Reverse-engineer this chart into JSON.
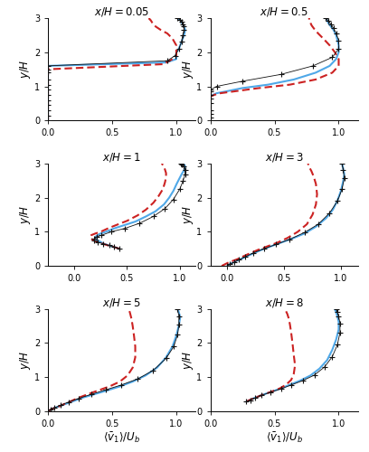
{
  "panels": [
    {
      "title": "0.05",
      "xlim": [
        0.0,
        1.15
      ],
      "xticks": [
        0,
        0.5,
        1
      ]
    },
    {
      "title": "0.5",
      "xlim": [
        0.0,
        1.15
      ],
      "xticks": [
        0,
        0.5,
        1
      ]
    },
    {
      "title": "1",
      "xlim": [
        -0.25,
        1.15
      ],
      "xticks": [
        0,
        0.5,
        1
      ]
    },
    {
      "title": "3",
      "xlim": [
        -0.15,
        1.15
      ],
      "xticks": [
        0,
        0.5,
        1
      ]
    },
    {
      "title": "5",
      "xlim": [
        0.0,
        1.15
      ],
      "xticks": [
        0,
        0.5,
        1
      ]
    },
    {
      "title": "8",
      "xlim": [
        0.0,
        1.15
      ],
      "xticks": [
        0,
        0.5,
        1
      ]
    }
  ],
  "ylim": [
    0,
    3
  ],
  "yticks": [
    0,
    1,
    2,
    3
  ],
  "new_pans_color": "#4fa8e8",
  "old_pans_color": "#cc2222",
  "les_color": "#111111",
  "new_pans_lw": 1.5,
  "old_pans_lw": 1.5,
  "les_ms": 4.0,
  "panel_data": {
    "0.05": {
      "new_x": [
        0.0,
        0.0,
        0.0,
        0.0,
        0.0,
        0.0,
        0.0,
        0.0,
        0.0,
        0.0,
        0.0,
        0.0,
        0.0,
        0.0,
        0.0,
        0.0,
        0.0,
        0.0,
        0.0,
        0.0,
        0.0,
        0.0,
        0.0,
        0.0,
        0.0,
        0.0,
        0.0,
        0.0,
        0.0,
        0.0,
        0.92,
        1.0,
        1.0,
        1.0,
        1.02,
        1.04,
        1.06,
        1.07,
        1.06,
        1.05,
        1.04,
        1.03,
        1.01
      ],
      "new_y": [
        0.0,
        0.05,
        0.1,
        0.15,
        0.2,
        0.25,
        0.3,
        0.35,
        0.4,
        0.45,
        0.5,
        0.55,
        0.6,
        0.65,
        0.7,
        0.75,
        0.8,
        0.85,
        0.9,
        0.95,
        1.0,
        1.05,
        1.1,
        1.15,
        1.2,
        1.25,
        1.3,
        1.4,
        1.5,
        1.6,
        1.7,
        1.8,
        1.9,
        2.0,
        2.1,
        2.3,
        2.5,
        2.65,
        2.75,
        2.82,
        2.88,
        2.94,
        3.0
      ],
      "old_x": [
        0.0,
        0.0,
        0.0,
        0.0,
        0.0,
        0.0,
        0.0,
        0.0,
        0.0,
        0.0,
        0.0,
        0.0,
        0.0,
        0.0,
        0.0,
        0.0,
        0.0,
        0.0,
        0.0,
        0.0,
        0.0,
        0.0,
        0.0,
        0.0,
        0.0,
        0.0,
        0.0,
        0.0,
        0.0,
        0.9,
        0.97,
        1.0,
        1.0,
        1.0,
        0.97,
        0.93,
        0.88,
        0.84,
        0.82,
        0.81,
        0.8,
        0.79,
        0.79
      ],
      "old_y": [
        0.0,
        0.05,
        0.1,
        0.15,
        0.2,
        0.25,
        0.3,
        0.35,
        0.4,
        0.45,
        0.5,
        0.55,
        0.6,
        0.65,
        0.7,
        0.75,
        0.8,
        0.85,
        0.9,
        0.95,
        1.0,
        1.05,
        1.1,
        1.15,
        1.2,
        1.25,
        1.3,
        1.4,
        1.5,
        1.65,
        1.8,
        1.9,
        2.0,
        2.2,
        2.4,
        2.55,
        2.65,
        2.75,
        2.82,
        2.88,
        2.94,
        2.97,
        3.0
      ],
      "les_x": [
        0.0,
        0.0,
        0.0,
        0.0,
        0.0,
        0.0,
        0.0,
        0.0,
        0.0,
        0.0,
        0.0,
        0.0,
        0.93,
        0.99,
        1.02,
        1.04,
        1.05,
        1.06,
        1.06,
        1.05,
        1.04,
        1.03,
        1.01
      ],
      "les_y": [
        0.0,
        0.15,
        0.3,
        0.45,
        0.6,
        0.75,
        0.9,
        1.05,
        1.2,
        1.4,
        1.5,
        1.6,
        1.75,
        1.9,
        2.1,
        2.3,
        2.5,
        2.65,
        2.75,
        2.82,
        2.9,
        2.95,
        3.0
      ]
    },
    "0.5": {
      "new_x": [
        0.0,
        0.0,
        0.0,
        0.0,
        0.0,
        0.0,
        0.0,
        0.0,
        0.0,
        0.0,
        0.0,
        0.0,
        0.0,
        0.0,
        0.0,
        0.02,
        0.05,
        0.12,
        0.25,
        0.45,
        0.65,
        0.82,
        0.93,
        0.98,
        1.0,
        1.0,
        0.99,
        0.98,
        0.96,
        0.94,
        0.92,
        0.91,
        0.9
      ],
      "new_y": [
        0.0,
        0.05,
        0.1,
        0.15,
        0.2,
        0.25,
        0.3,
        0.35,
        0.4,
        0.45,
        0.5,
        0.55,
        0.6,
        0.65,
        0.7,
        0.75,
        0.8,
        0.85,
        0.95,
        1.05,
        1.2,
        1.4,
        1.6,
        1.8,
        2.0,
        2.2,
        2.35,
        2.5,
        2.65,
        2.75,
        2.85,
        2.93,
        3.0
      ],
      "old_x": [
        0.0,
        0.0,
        0.0,
        0.0,
        0.0,
        0.0,
        0.0,
        0.0,
        0.0,
        0.0,
        0.0,
        0.0,
        0.0,
        0.0,
        0.0,
        0.03,
        0.08,
        0.18,
        0.38,
        0.62,
        0.82,
        0.95,
        1.0,
        1.0,
        0.97,
        0.93,
        0.88,
        0.84,
        0.81,
        0.79,
        0.78,
        0.77,
        0.77
      ],
      "old_y": [
        0.0,
        0.05,
        0.1,
        0.15,
        0.2,
        0.25,
        0.3,
        0.35,
        0.4,
        0.45,
        0.5,
        0.55,
        0.6,
        0.65,
        0.7,
        0.75,
        0.8,
        0.85,
        0.95,
        1.05,
        1.2,
        1.4,
        1.6,
        1.8,
        2.0,
        2.2,
        2.4,
        2.55,
        2.68,
        2.78,
        2.86,
        2.93,
        3.0
      ],
      "les_x": [
        0.0,
        0.0,
        0.0,
        0.0,
        0.0,
        0.0,
        0.0,
        0.0,
        0.0,
        0.05,
        0.25,
        0.55,
        0.8,
        0.95,
        1.0,
        1.0,
        0.98,
        0.96,
        0.94,
        0.92,
        0.9
      ],
      "les_y": [
        0.0,
        0.1,
        0.2,
        0.3,
        0.5,
        0.65,
        0.75,
        0.85,
        0.9,
        1.0,
        1.15,
        1.35,
        1.6,
        1.85,
        2.1,
        2.35,
        2.55,
        2.7,
        2.82,
        2.92,
        3.0
      ]
    },
    "1": {
      "new_x": [
        0.43,
        0.38,
        0.33,
        0.28,
        0.25,
        0.22,
        0.2,
        0.2,
        0.22,
        0.25,
        0.3,
        0.38,
        0.48,
        0.58,
        0.68,
        0.77,
        0.85,
        0.9,
        0.94,
        0.97,
        1.0,
        1.02,
        1.04,
        1.05,
        1.05,
        1.04,
        1.03,
        1.01
      ],
      "new_y": [
        0.5,
        0.55,
        0.6,
        0.65,
        0.7,
        0.75,
        0.8,
        0.85,
        0.9,
        0.95,
        1.0,
        1.1,
        1.2,
        1.3,
        1.45,
        1.6,
        1.8,
        2.0,
        2.2,
        2.4,
        2.58,
        2.7,
        2.8,
        2.88,
        2.93,
        2.97,
        2.99,
        3.0
      ],
      "old_x": [
        0.43,
        0.38,
        0.32,
        0.27,
        0.22,
        0.18,
        0.16,
        0.15,
        0.16,
        0.2,
        0.25,
        0.32,
        0.4,
        0.5,
        0.6,
        0.68,
        0.75,
        0.8,
        0.84,
        0.86,
        0.87,
        0.87,
        0.86,
        0.85,
        0.84,
        0.83
      ],
      "old_y": [
        0.5,
        0.55,
        0.6,
        0.65,
        0.7,
        0.75,
        0.8,
        0.85,
        0.9,
        0.95,
        1.0,
        1.1,
        1.2,
        1.32,
        1.48,
        1.65,
        1.85,
        2.05,
        2.25,
        2.45,
        2.6,
        2.72,
        2.82,
        2.9,
        2.95,
        3.0
      ],
      "les_x": [
        0.43,
        0.38,
        0.33,
        0.27,
        0.22,
        0.19,
        0.19,
        0.21,
        0.26,
        0.35,
        0.48,
        0.62,
        0.75,
        0.86,
        0.94,
        1.0,
        1.03,
        1.05,
        1.05,
        1.04,
        1.02,
        1.01
      ],
      "les_y": [
        0.5,
        0.55,
        0.6,
        0.65,
        0.7,
        0.75,
        0.8,
        0.85,
        0.9,
        1.0,
        1.1,
        1.25,
        1.45,
        1.68,
        1.95,
        2.25,
        2.48,
        2.68,
        2.82,
        2.92,
        2.97,
        3.0
      ]
    },
    "3": {
      "new_x": [
        0.0,
        0.02,
        0.05,
        0.08,
        0.12,
        0.17,
        0.23,
        0.3,
        0.38,
        0.47,
        0.57,
        0.68,
        0.78,
        0.87,
        0.93,
        0.97,
        1.0,
        1.02,
        1.03,
        1.02,
        1.01
      ],
      "new_y": [
        0.0,
        0.05,
        0.1,
        0.15,
        0.2,
        0.28,
        0.37,
        0.47,
        0.57,
        0.68,
        0.8,
        0.95,
        1.15,
        1.4,
        1.65,
        1.92,
        2.2,
        2.48,
        2.68,
        2.85,
        3.0
      ],
      "old_x": [
        -0.05,
        -0.02,
        0.01,
        0.05,
        0.09,
        0.14,
        0.2,
        0.27,
        0.35,
        0.44,
        0.53,
        0.62,
        0.7,
        0.75,
        0.78,
        0.79,
        0.78,
        0.76,
        0.74,
        0.72,
        0.71
      ],
      "old_y": [
        0.0,
        0.05,
        0.1,
        0.15,
        0.2,
        0.28,
        0.37,
        0.47,
        0.57,
        0.68,
        0.82,
        1.0,
        1.22,
        1.5,
        1.8,
        2.1,
        2.4,
        2.62,
        2.78,
        2.9,
        3.0
      ],
      "les_x": [
        0.0,
        0.02,
        0.06,
        0.1,
        0.16,
        0.23,
        0.32,
        0.43,
        0.55,
        0.68,
        0.8,
        0.9,
        0.97,
        1.01,
        1.03,
        1.02,
        1.01
      ],
      "les_y": [
        0.0,
        0.05,
        0.1,
        0.18,
        0.27,
        0.38,
        0.5,
        0.63,
        0.78,
        0.98,
        1.22,
        1.55,
        1.9,
        2.25,
        2.58,
        2.82,
        3.0
      ]
    },
    "5": {
      "new_x": [
        0.0,
        0.02,
        0.05,
        0.09,
        0.14,
        0.2,
        0.27,
        0.36,
        0.46,
        0.56,
        0.66,
        0.76,
        0.85,
        0.92,
        0.97,
        1.0,
        1.02,
        1.03,
        1.02,
        1.01
      ],
      "new_y": [
        0.0,
        0.05,
        0.1,
        0.15,
        0.22,
        0.3,
        0.4,
        0.5,
        0.61,
        0.73,
        0.87,
        1.05,
        1.28,
        1.58,
        1.9,
        2.22,
        2.52,
        2.75,
        2.9,
        3.0
      ],
      "old_x": [
        0.0,
        0.02,
        0.05,
        0.09,
        0.13,
        0.18,
        0.24,
        0.31,
        0.39,
        0.48,
        0.56,
        0.62,
        0.66,
        0.68,
        0.68,
        0.67,
        0.66,
        0.65,
        0.64,
        0.63
      ],
      "old_y": [
        0.0,
        0.05,
        0.1,
        0.15,
        0.22,
        0.3,
        0.4,
        0.5,
        0.61,
        0.73,
        0.87,
        1.05,
        1.28,
        1.58,
        1.9,
        2.22,
        2.5,
        2.72,
        2.87,
        3.0
      ],
      "les_x": [
        0.0,
        0.02,
        0.05,
        0.1,
        0.16,
        0.24,
        0.34,
        0.45,
        0.57,
        0.7,
        0.82,
        0.92,
        0.98,
        1.01,
        1.02,
        1.02,
        1.01
      ],
      "les_y": [
        0.0,
        0.05,
        0.1,
        0.18,
        0.27,
        0.38,
        0.5,
        0.63,
        0.77,
        0.95,
        1.2,
        1.55,
        1.9,
        2.25,
        2.55,
        2.78,
        3.0
      ]
    },
    "8": {
      "new_x": [
        0.28,
        0.3,
        0.33,
        0.37,
        0.42,
        0.48,
        0.55,
        0.62,
        0.7,
        0.78,
        0.85,
        0.91,
        0.95,
        0.98,
        1.0,
        1.0,
        0.99,
        0.98,
        0.97
      ],
      "new_y": [
        0.28,
        0.32,
        0.37,
        0.43,
        0.5,
        0.58,
        0.67,
        0.78,
        0.9,
        1.05,
        1.25,
        1.5,
        1.8,
        2.1,
        2.4,
        2.62,
        2.78,
        2.9,
        3.0
      ],
      "old_x": [
        0.28,
        0.3,
        0.33,
        0.37,
        0.42,
        0.48,
        0.54,
        0.59,
        0.63,
        0.65,
        0.66,
        0.65,
        0.64,
        0.63,
        0.62,
        0.61,
        0.6,
        0.59,
        0.58
      ],
      "old_y": [
        0.28,
        0.32,
        0.37,
        0.43,
        0.5,
        0.58,
        0.67,
        0.78,
        0.92,
        1.1,
        1.35,
        1.65,
        2.0,
        2.3,
        2.55,
        2.73,
        2.85,
        2.93,
        3.0
      ],
      "les_x": [
        0.28,
        0.31,
        0.35,
        0.4,
        0.47,
        0.55,
        0.63,
        0.72,
        0.81,
        0.89,
        0.95,
        0.99,
        1.01,
        1.01,
        1.0,
        0.99,
        0.98
      ],
      "les_y": [
        0.28,
        0.33,
        0.39,
        0.47,
        0.56,
        0.66,
        0.77,
        0.9,
        1.06,
        1.3,
        1.6,
        1.95,
        2.3,
        2.58,
        2.78,
        2.92,
        3.0
      ]
    }
  }
}
